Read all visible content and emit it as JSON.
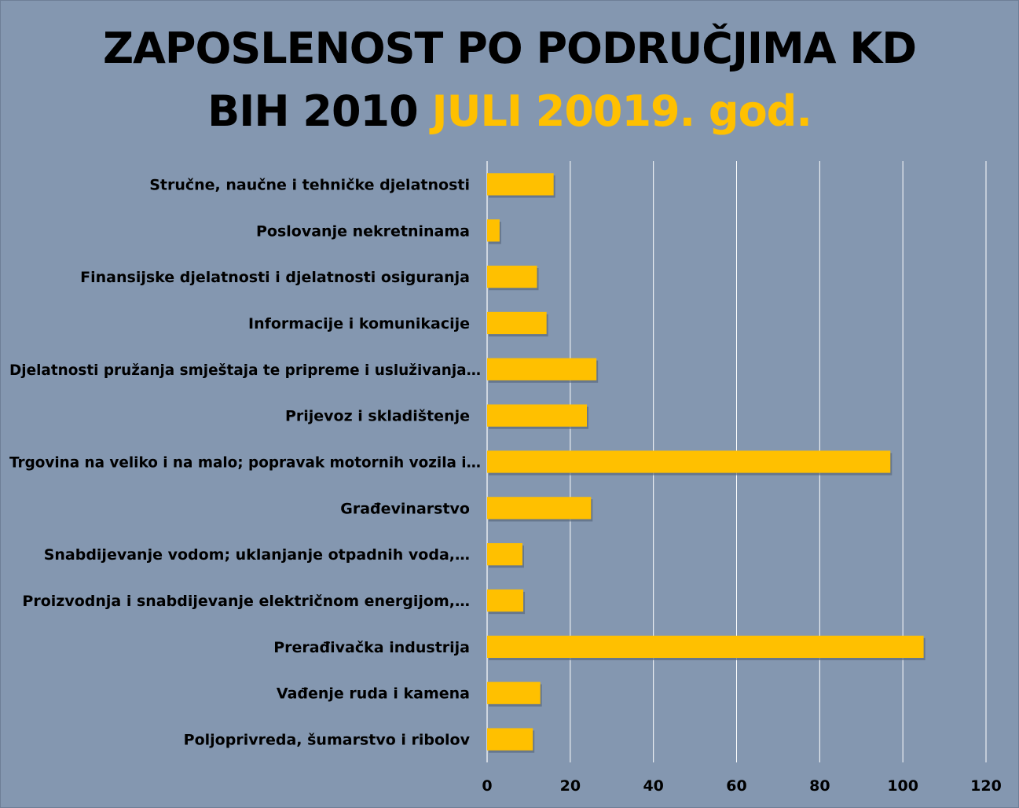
{
  "chart_data": {
    "type": "bar",
    "orientation": "horizontal",
    "title_line1": "ZAPOSLENOST PO PODRUČJIMA KD",
    "title_line2_prefix": "BIH 2010",
    "title_line2_highlight": "JULI 20019. god.",
    "categories": [
      "Stručne, naučne i tehničke djelatnosti",
      "Poslovanje nekretninama",
      "Finansijske djelatnosti i djelatnosti osiguranja",
      "Informacije i komunikacije",
      "Djelatnosti pružanja smještaja te pripreme i usluživanja…",
      "Prijevoz i skladištenje",
      "Trgovina na veliko i na malo; popravak motornih vozila i…",
      "Građevinarstvo",
      "Snabdijevanje vodom; uklanjanje otpadnih voda,…",
      "Proizvodnja i snabdijevanje električnom energijom,…",
      "Prerađivačka industrija",
      "Vađenje ruda i kamena",
      "Poljoprivreda, šumarstvo i ribolov"
    ],
    "values": [
      16,
      3,
      12,
      14.3,
      26.3,
      24,
      97,
      25,
      8.5,
      8.7,
      105,
      12.8,
      11
    ],
    "xlim": [
      0,
      120
    ],
    "xticks": [
      "0",
      "20",
      "40",
      "60",
      "80",
      "100",
      "120"
    ],
    "grid": "vertical",
    "legend": "none",
    "colors": {
      "background": "#8497b0",
      "bar": "#ffc000",
      "bar_shadow": "#5a6a80",
      "grid": "#ffffff",
      "text": "#000000",
      "title_highlight": "#ffc000"
    }
  }
}
